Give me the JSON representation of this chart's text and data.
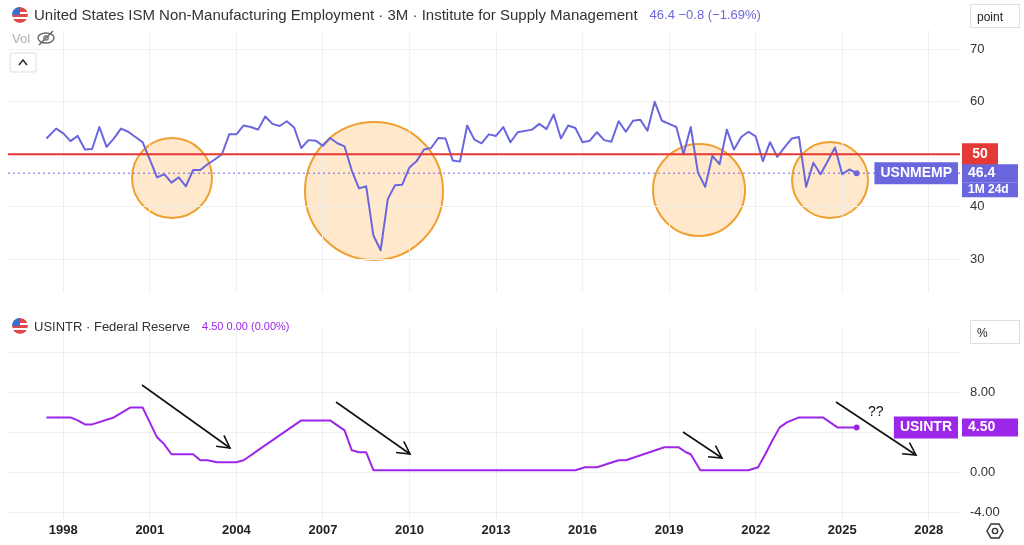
{
  "chart_data": [
    {
      "type": "line",
      "title": "United States ISM Non-Manufacturing Employment · 3M · Institute for Supply Management",
      "subtitle": "46.4 −0.8 (−1.69%)",
      "ylabel": "point",
      "x": [
        "1997-06",
        "1997-10",
        "1998-01",
        "1998-04",
        "1998-07",
        "1998-10",
        "1999-01",
        "1999-04",
        "1999-07",
        "1999-10",
        "2000-01",
        "2000-04",
        "2000-07",
        "2000-10",
        "2001-01",
        "2001-04",
        "2001-07",
        "2001-10",
        "2002-01",
        "2002-04",
        "2002-07",
        "2002-10",
        "2003-01",
        "2003-04",
        "2003-07",
        "2003-10",
        "2004-01",
        "2004-04",
        "2004-07",
        "2004-10",
        "2005-01",
        "2005-04",
        "2005-07",
        "2005-10",
        "2006-01",
        "2006-04",
        "2006-07",
        "2006-10",
        "2007-01",
        "2007-04",
        "2007-07",
        "2007-10",
        "2008-01",
        "2008-04",
        "2008-07",
        "2008-10",
        "2009-01",
        "2009-04",
        "2009-07",
        "2009-10",
        "2010-01",
        "2010-04",
        "2010-07",
        "2010-10",
        "2011-01",
        "2011-04",
        "2011-07",
        "2011-10",
        "2012-01",
        "2012-04",
        "2012-07",
        "2012-10",
        "2013-01",
        "2013-04",
        "2013-07",
        "2013-10",
        "2014-04",
        "2014-07",
        "2014-10",
        "2015-01",
        "2015-04",
        "2015-07",
        "2015-10",
        "2016-01",
        "2016-04",
        "2016-07",
        "2016-10",
        "2017-01",
        "2017-04",
        "2017-07",
        "2017-10",
        "2018-01",
        "2018-04",
        "2018-07",
        "2018-10",
        "2019-01",
        "2019-04",
        "2019-07",
        "2019-10",
        "2020-01",
        "2020-04",
        "2020-07",
        "2020-10",
        "2021-01",
        "2021-04",
        "2021-07",
        "2021-10",
        "2022-01",
        "2022-04",
        "2022-07",
        "2022-10",
        "2023-01",
        "2023-04",
        "2023-07",
        "2023-10",
        "2024-01",
        "2024-04",
        "2024-07",
        "2024-10",
        "2025-01",
        "2025-04",
        "2025-07"
      ],
      "series": [
        {
          "name": "USNMEMP",
          "color": "#6a67de",
          "values": [
            53.0,
            54.9,
            54.0,
            52.5,
            53.5,
            50.9,
            51.0,
            55.2,
            51.4,
            53.0,
            54.9,
            54.3,
            53.3,
            52.3,
            49.0,
            45.6,
            46.2,
            44.6,
            45.6,
            43.9,
            47.0,
            47.0,
            48.1,
            49.0,
            50.0,
            53.8,
            53.8,
            55.5,
            55.2,
            54.7,
            57.2,
            55.8,
            55.4,
            56.3,
            55.1,
            51.2,
            52.7,
            52.6,
            51.6,
            53.1,
            52.1,
            51.5,
            46.9,
            43.5,
            43.9,
            34.5,
            31.7,
            41.5,
            44.1,
            44.2,
            47.5,
            48.7,
            50.9,
            51.2,
            53.1,
            53.0,
            48.8,
            48.6,
            55.5,
            52.8,
            52.1,
            53.8,
            53.5,
            55.2,
            52.3,
            54.2,
            54.7,
            55.8,
            54.8,
            57.6,
            53.0,
            55.5,
            55.0,
            52.3,
            52.6,
            54.2,
            52.7,
            52.4,
            56.3,
            54.3,
            56.4,
            56.6,
            54.5,
            60.0,
            56.4,
            55.8,
            55.2,
            50.0,
            55.2,
            46.5,
            43.8,
            49.7,
            48.1,
            54.7,
            50.9,
            53.3,
            54.3,
            53.4,
            48.7,
            52.3,
            49.5,
            51.3,
            53.0,
            53.3,
            43.8,
            48.4,
            46.2,
            48.7,
            51.3,
            46.2,
            47.1,
            46.4
          ]
        }
      ],
      "xlim": [
        "1996-02",
        "2029-02"
      ],
      "xticks": [
        "1998",
        "2001",
        "2004",
        "2007",
        "2010",
        "2013",
        "2016",
        "2019",
        "2022",
        "2025",
        "2028"
      ],
      "ylim": [
        23.7,
        73.7
      ],
      "yticks": [
        30,
        40,
        {
          "value": 50,
          "label": null
        },
        60,
        70
      ],
      "ref_lines": [
        {
          "axis": "y",
          "value": 50,
          "label": "50",
          "color": "#e53935"
        },
        {
          "axis": "y",
          "value": 46.4,
          "label": null,
          "color": "#6a67de",
          "line_style": "dotted"
        }
      ],
      "annotations": [
        "Vol",
        "46.4",
        "1M 24d"
      ],
      "grid": true,
      "legend": "right",
      "marker": "none",
      "line_style": "solid",
      "tick_labels": "y"
    },
    {
      "type": "line",
      "title": "USINTR · Federal Reserve",
      "subtitle": "4.50 0.00 (0.00%)",
      "ylabel": "%",
      "x": [
        "1997-06",
        "1998-04",
        "1998-07",
        "1998-10",
        "1999-01",
        "1999-10",
        "2000-05",
        "2000-10",
        "2001-01",
        "2001-04",
        "2001-07",
        "2001-10",
        "2002-07",
        "2002-10",
        "2003-01",
        "2003-05",
        "2004-01",
        "2004-04",
        "2006-04",
        "2007-04",
        "2007-10",
        "2008-01",
        "2008-04",
        "2008-07",
        "2008-10",
        "2015-10",
        "2016-02",
        "2016-07",
        "2017-04",
        "2017-07",
        "2018-11",
        "2019-05",
        "2019-08",
        "2019-10",
        "2020-02",
        "2021-10",
        "2022-02",
        "2022-05",
        "2022-08",
        "2022-11",
        "2023-02",
        "2023-07",
        "2024-05",
        "2024-11",
        "2025-07"
      ],
      "series": [
        {
          "name": "USINTR",
          "color": "#9c27e8",
          "values": [
            5.5,
            5.5,
            5.2,
            4.8,
            4.8,
            5.5,
            6.5,
            6.5,
            5.0,
            3.5,
            2.8,
            1.8,
            1.8,
            1.2,
            1.2,
            1.0,
            1.0,
            1.2,
            5.2,
            5.2,
            4.2,
            2.2,
            2.0,
            2.0,
            0.2,
            0.2,
            0.5,
            0.5,
            1.2,
            1.2,
            2.5,
            2.5,
            2.0,
            1.8,
            0.2,
            0.2,
            0.5,
            1.8,
            3.2,
            4.5,
            5.0,
            5.5,
            5.5,
            4.5,
            4.5
          ]
        }
      ],
      "xlim": [
        "1996-02",
        "2029-02"
      ],
      "xticks": [
        "1998",
        "2001",
        "2004",
        "2007",
        "2010",
        "2013",
        "2016",
        "2019",
        "2022",
        "2025",
        "2028"
      ],
      "ylim": [
        -4.8,
        14.5
      ],
      "yticks": [
        {
          "value": -4,
          "label": "-4.00"
        },
        {
          "value": 0,
          "label": "0.00"
        },
        {
          "value": 4,
          "label": null
        },
        {
          "value": 8,
          "label": "8.00"
        },
        {
          "value": 12,
          "label": null
        }
      ],
      "annotations": [
        "4.50",
        "??"
      ],
      "grid": true,
      "legend": "right",
      "marker": "none",
      "line_style": "solid"
    }
  ]
}
